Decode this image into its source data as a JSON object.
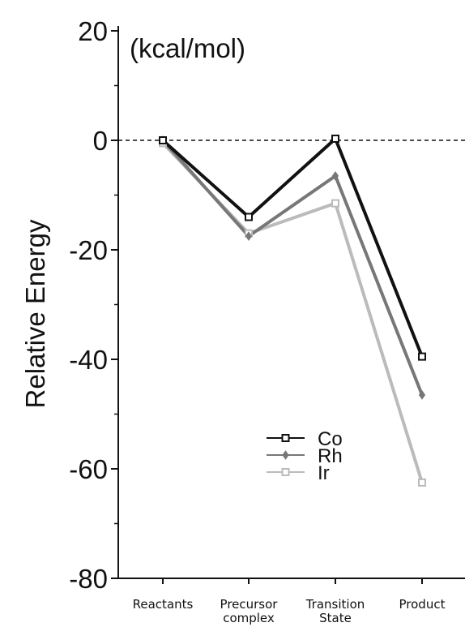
{
  "chart_data": {
    "type": "line",
    "title": "",
    "unit_label": "(kcal/mol)",
    "ylabel": "Relative Energy",
    "xlabel": "",
    "ylim": [
      -80,
      20
    ],
    "yticks": [
      "20",
      "0",
      "-20",
      "-40",
      "-60",
      "-80"
    ],
    "ytick_values": [
      20,
      0,
      -20,
      -40,
      -60,
      -80
    ],
    "reference_line": {
      "y": 0,
      "style": "dashed"
    },
    "categories": [
      {
        "lines": [
          "Reactants"
        ]
      },
      {
        "lines": [
          "Precursor",
          "complex"
        ]
      },
      {
        "lines": [
          "Transition",
          "State"
        ]
      },
      {
        "lines": [
          "Product"
        ]
      }
    ],
    "legend_position": "lower-center",
    "series": [
      {
        "name": "Co",
        "values": [
          0,
          -14,
          0.3,
          -39.5
        ],
        "color": "#111111",
        "marker": "square-open"
      },
      {
        "name": "Rh",
        "values": [
          0,
          -17.5,
          -6.5,
          -46.5
        ],
        "color": "#777777",
        "marker": "diamond"
      },
      {
        "name": "Ir",
        "values": [
          -0.5,
          -17,
          -11.5,
          -62.5
        ],
        "color": "#bbbbbb",
        "marker": "square-open"
      }
    ]
  }
}
